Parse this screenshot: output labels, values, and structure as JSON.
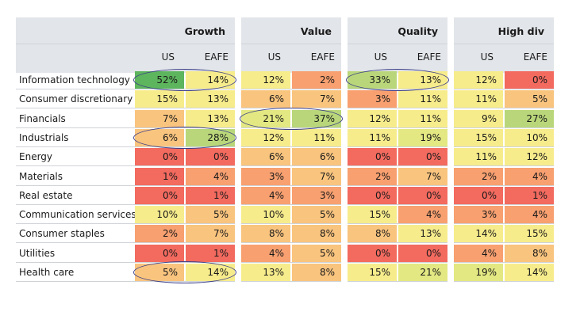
{
  "groups": [
    {
      "title": "Growth",
      "subs": [
        "US",
        "EAFE"
      ]
    },
    {
      "title": "Value",
      "subs": [
        "US",
        "EAFE"
      ]
    },
    {
      "title": "Quality",
      "subs": [
        "US",
        "EAFE"
      ]
    },
    {
      "title": "High div",
      "subs": [
        "US",
        "EAFE"
      ]
    }
  ],
  "rows": [
    {
      "sector": "Information technology",
      "values": [
        "52%",
        "14%",
        "12%",
        "2%",
        "33%",
        "13%",
        "12%",
        "0%"
      ]
    },
    {
      "sector": "Consumer discretionary",
      "values": [
        "15%",
        "13%",
        "6%",
        "7%",
        "3%",
        "11%",
        "11%",
        "5%"
      ]
    },
    {
      "sector": "Financials",
      "values": [
        "7%",
        "13%",
        "21%",
        "37%",
        "12%",
        "11%",
        "9%",
        "27%"
      ]
    },
    {
      "sector": "Industrials",
      "values": [
        "6%",
        "28%",
        "12%",
        "11%",
        "11%",
        "19%",
        "15%",
        "10%"
      ]
    },
    {
      "sector": "Energy",
      "values": [
        "0%",
        "0%",
        "6%",
        "6%",
        "0%",
        "0%",
        "11%",
        "12%"
      ]
    },
    {
      "sector": "Materials",
      "values": [
        "1%",
        "4%",
        "3%",
        "7%",
        "2%",
        "7%",
        "2%",
        "4%"
      ]
    },
    {
      "sector": "Real estate",
      "values": [
        "0%",
        "1%",
        "4%",
        "3%",
        "0%",
        "0%",
        "0%",
        "1%"
      ]
    },
    {
      "sector": "Communication services",
      "values": [
        "10%",
        "5%",
        "10%",
        "5%",
        "15%",
        "4%",
        "3%",
        "4%"
      ]
    },
    {
      "sector": "Consumer staples",
      "values": [
        "2%",
        "7%",
        "8%",
        "8%",
        "8%",
        "13%",
        "14%",
        "15%"
      ]
    },
    {
      "sector": "Utilities",
      "values": [
        "0%",
        "1%",
        "4%",
        "5%",
        "0%",
        "0%",
        "4%",
        "8%"
      ]
    },
    {
      "sector": "Health care",
      "values": [
        "5%",
        "14%",
        "13%",
        "8%",
        "15%",
        "21%",
        "19%",
        "14%"
      ]
    }
  ],
  "highlights": [
    {
      "row": "Information technology",
      "group": "Growth"
    },
    {
      "row": "Information technology",
      "group": "Quality"
    },
    {
      "row": "Financials",
      "group": "Value"
    },
    {
      "row": "Industrials",
      "group": "Growth"
    },
    {
      "row": "Health care",
      "group": "Growth"
    }
  ],
  "colors": {
    "header_band": "#e2e5e9",
    "dark_green": "#5db55d",
    "light_green": "#b9d77a",
    "pale_yellow_green": "#e3e882",
    "yellow": "#f7ec8c",
    "light_orange": "#f9c47e",
    "orange": "#f8a070",
    "red": "#f36a5f",
    "oval_stroke": "#3c3f88"
  }
}
